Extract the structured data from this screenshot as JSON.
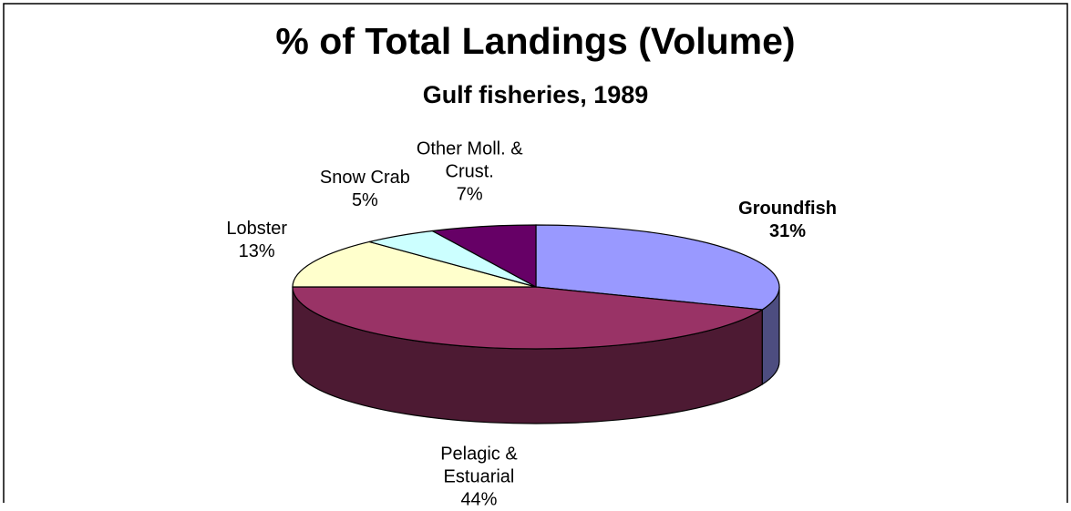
{
  "chart_data": {
    "type": "pie3d",
    "title": "% of Total Landings (Volume)",
    "subtitle": "Gulf fisheries, 1989",
    "categories": [
      "Groundfish",
      "Pelagic & Estuarial",
      "Lobster",
      "Snow Crab",
      "Other Moll. & Crust."
    ],
    "values": [
      31,
      44,
      13,
      5,
      7
    ],
    "value_labels": [
      "31%",
      "44%",
      "13%",
      "5%",
      "7%"
    ],
    "colors": [
      "#9999ff",
      "#993366",
      "#ffffcc",
      "#ccffff",
      "#660066"
    ],
    "side_colors": [
      "#4d4d80",
      "#4d1a33",
      "#80806a",
      "#6a8080",
      "#330033"
    ]
  }
}
